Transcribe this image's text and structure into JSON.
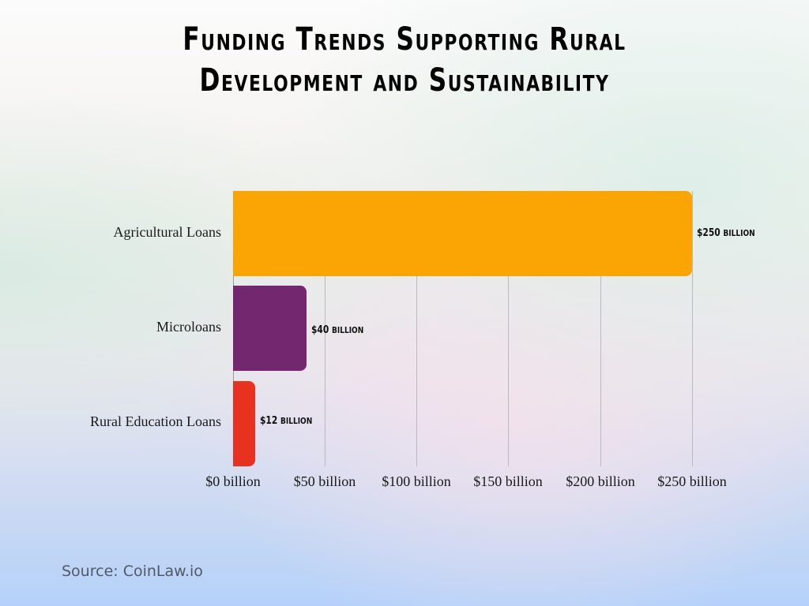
{
  "title": {
    "line1": "Funding Trends Supporting Rural",
    "line2": "Development and Sustainability"
  },
  "source": "Source: CoinLaw.io",
  "chart_data": {
    "type": "bar",
    "orientation": "horizontal",
    "title": "Funding Trends Supporting Rural Development and Sustainability",
    "categories": [
      "Agricultural Loans",
      "Microloans",
      "Rural Education Loans"
    ],
    "values": [
      250,
      40,
      12
    ],
    "unit": "billion USD",
    "value_labels": [
      "$250 billion",
      "$40 billion",
      "$12 billion"
    ],
    "colors": [
      "#FBA504",
      "#73276E",
      "#E8311F"
    ],
    "xlabel": "",
    "ylabel": "",
    "x_ticks": [
      "$0 billion",
      "$50 billion",
      "$100 billion",
      "$150 billion",
      "$200 billion",
      "$250 billion"
    ],
    "xlim": [
      0,
      250
    ],
    "grid": "vertical",
    "legend": "none"
  },
  "bars": [
    {
      "label": "Agricultural Loans",
      "value_main": "$250",
      "value_unit": "billion"
    },
    {
      "label": "Microloans",
      "value_main": "$40",
      "value_unit": "billion"
    },
    {
      "label": "Rural Education Loans",
      "value_main": "$12",
      "value_unit": "billion"
    }
  ]
}
